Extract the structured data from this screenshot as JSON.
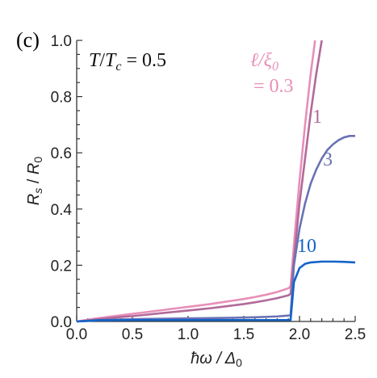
{
  "panel_label": "(c)",
  "annotation": {
    "lhs": "T",
    "lhs_sub": "c",
    "rhs": "= 0.5"
  },
  "chart_data": {
    "type": "line",
    "xlabel": "ħω / Δ",
    "xlabel_sub": "0",
    "ylabel": "R",
    "ylabel_sub_num": "s",
    "ylabel_den": "R",
    "ylabel_sub_den": "0",
    "xlim": [
      0.0,
      2.5
    ],
    "ylim": [
      0.0,
      1.0
    ],
    "xticks": [
      "0.0",
      "0.5",
      "1.0",
      "1.5",
      "2.0",
      "2.5"
    ],
    "yticks": [
      "0.0",
      "0.2",
      "0.4",
      "0.6",
      "0.8",
      "1.0"
    ],
    "grid": false,
    "legend_title": {
      "line1": "ℓ/ξ",
      "line1_sub": "0",
      "line2": "= 0.3"
    },
    "series": [
      {
        "name": "0.3",
        "label": "= 0.3",
        "color": "#e88fb8",
        "x": [
          0.0,
          0.1,
          0.2,
          0.3,
          0.4,
          0.5,
          0.6,
          0.7,
          0.8,
          0.9,
          1.0,
          1.1,
          1.2,
          1.3,
          1.4,
          1.5,
          1.6,
          1.7,
          1.8,
          1.9,
          1.92,
          1.96,
          2.0,
          2.05,
          2.1,
          2.14
        ],
        "y": [
          0.0,
          0.006,
          0.012,
          0.017,
          0.022,
          0.027,
          0.032,
          0.037,
          0.042,
          0.047,
          0.052,
          0.057,
          0.062,
          0.068,
          0.074,
          0.08,
          0.087,
          0.095,
          0.105,
          0.118,
          0.125,
          0.32,
          0.5,
          0.7,
          0.88,
          1.0
        ]
      },
      {
        "name": "1",
        "label": "1",
        "color": "#b26a9a",
        "x": [
          0.0,
          0.1,
          0.2,
          0.3,
          0.4,
          0.5,
          0.6,
          0.7,
          0.8,
          0.9,
          1.0,
          1.1,
          1.2,
          1.3,
          1.4,
          1.5,
          1.6,
          1.7,
          1.8,
          1.9,
          1.92,
          1.96,
          2.0,
          2.05,
          2.1,
          2.15,
          2.2
        ],
        "y": [
          0.0,
          0.004,
          0.008,
          0.012,
          0.016,
          0.019,
          0.023,
          0.027,
          0.031,
          0.035,
          0.039,
          0.043,
          0.047,
          0.052,
          0.057,
          0.062,
          0.068,
          0.075,
          0.083,
          0.093,
          0.098,
          0.26,
          0.42,
          0.58,
          0.74,
          0.88,
          1.0
        ]
      },
      {
        "name": "3",
        "label": "3",
        "color": "#6a72b4",
        "x": [
          0.0,
          0.2,
          0.4,
          0.6,
          0.8,
          1.0,
          1.2,
          1.4,
          1.6,
          1.8,
          1.9,
          1.92,
          1.95,
          2.0,
          2.05,
          2.1,
          2.15,
          2.2,
          2.25,
          2.3,
          2.35,
          2.4,
          2.45,
          2.5
        ],
        "y": [
          0.0,
          0.005,
          0.007,
          0.009,
          0.01,
          0.011,
          0.012,
          0.013,
          0.015,
          0.018,
          0.021,
          0.022,
          0.2,
          0.33,
          0.42,
          0.49,
          0.54,
          0.58,
          0.61,
          0.63,
          0.645,
          0.655,
          0.66,
          0.66
        ]
      },
      {
        "name": "10",
        "label": "10",
        "color": "#1463c8",
        "x": [
          0.0,
          0.2,
          0.5,
          1.0,
          1.5,
          1.9,
          1.92,
          1.95,
          2.0,
          2.05,
          2.1,
          2.2,
          2.3,
          2.4,
          2.5
        ],
        "y": [
          0.0,
          0.004,
          0.005,
          0.005,
          0.005,
          0.005,
          0.005,
          0.14,
          0.19,
          0.205,
          0.21,
          0.213,
          0.213,
          0.212,
          0.21
        ]
      }
    ]
  }
}
